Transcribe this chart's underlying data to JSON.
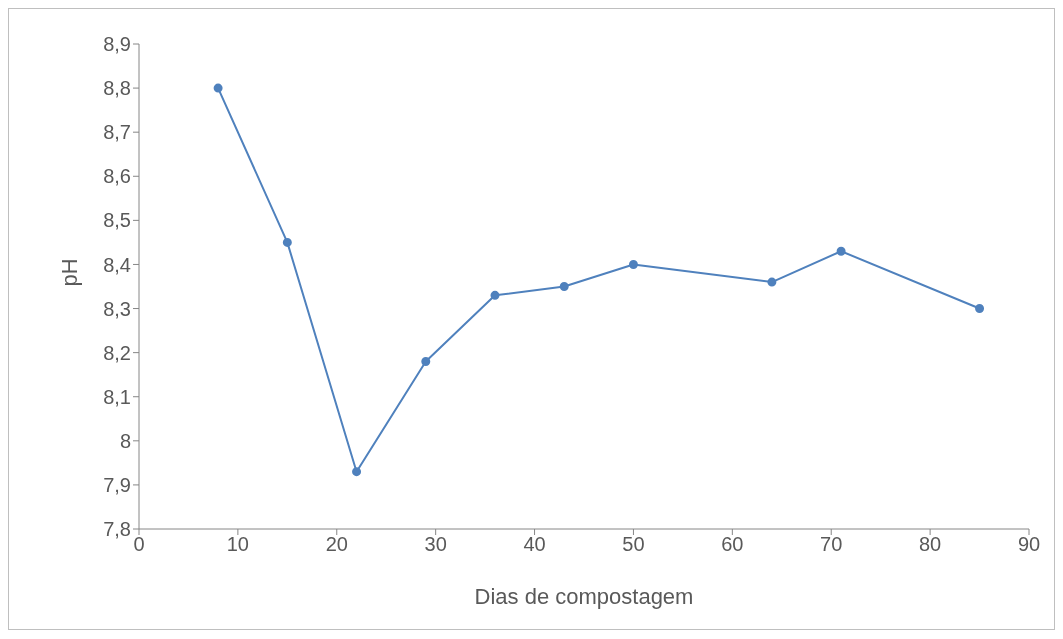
{
  "chart_data": {
    "type": "line",
    "xlabel": "Dias de compostagem",
    "ylabel": "pH",
    "x": [
      8,
      15,
      22,
      29,
      36,
      43,
      50,
      64,
      71,
      85
    ],
    "series": [
      {
        "color": "#4f81bd",
        "values": [
          8.8,
          8.45,
          7.93,
          8.18,
          8.33,
          8.35,
          8.4,
          8.36,
          8.43,
          8.3
        ]
      }
    ],
    "xlim": [
      0,
      90
    ],
    "xticks": [
      0,
      10,
      20,
      30,
      40,
      50,
      60,
      70,
      80,
      90
    ],
    "ylim": [
      7.8,
      8.9
    ],
    "yticks": [
      {
        "value": 7.8,
        "label": "7,8"
      },
      {
        "value": 7.9,
        "label": "7,9"
      },
      {
        "value": 8,
        "label": "8"
      },
      {
        "value": 8.1,
        "label": "8,1"
      },
      {
        "value": 8.2,
        "label": "8,2"
      },
      {
        "value": 8.3,
        "label": "8,3"
      },
      {
        "value": 8.4,
        "label": "8,4"
      },
      {
        "value": 8.5,
        "label": "8,5"
      },
      {
        "value": 8.6,
        "label": "8,6"
      },
      {
        "value": 8.7,
        "label": "8,7"
      },
      {
        "value": 8.8,
        "label": "8,8"
      },
      {
        "value": 8.9,
        "label": "8,9"
      }
    ],
    "grid": false,
    "legend": false,
    "marker": "circle",
    "line_style": "solid"
  }
}
